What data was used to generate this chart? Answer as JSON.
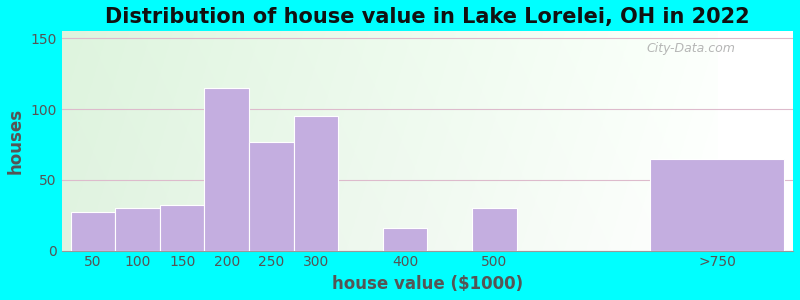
{
  "title": "Distribution of house value in Lake Lorelei, OH in 2022",
  "xlabel": "house value ($1000)",
  "ylabel": "houses",
  "categories": [
    "50",
    "100",
    "150",
    "200",
    "250",
    "300",
    "400",
    "500",
    ">750"
  ],
  "values": [
    27,
    30,
    32,
    115,
    77,
    95,
    16,
    30,
    65
  ],
  "bar_color": "#c4aee0",
  "bar_edge_color": "#ffffff",
  "ylim": [
    0,
    155
  ],
  "yticks": [
    0,
    50,
    100,
    150
  ],
  "background_outer": "#00ffff",
  "title_fontsize": 15,
  "axis_label_fontsize": 12,
  "tick_fontsize": 10,
  "watermark_text": "City-Data.com",
  "watermark_color": "#aaaaaa",
  "x_positions": [
    0,
    1,
    2,
    3,
    4,
    5,
    7,
    9,
    13
  ],
  "bar_widths": [
    1,
    1,
    1,
    1,
    1,
    1,
    1,
    1,
    3
  ]
}
